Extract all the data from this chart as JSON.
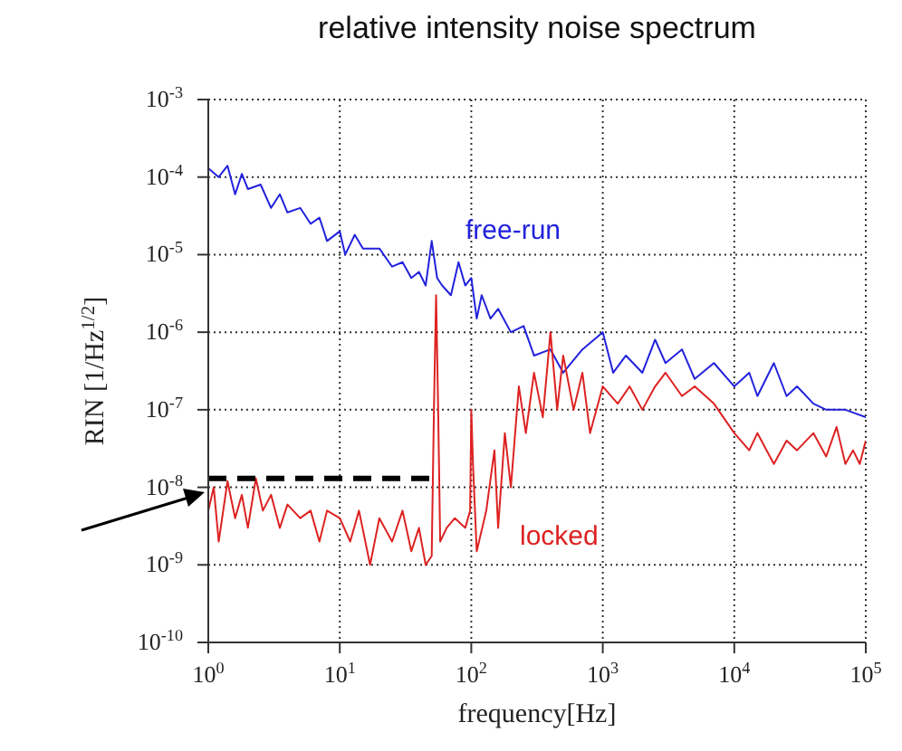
{
  "chart_data": {
    "type": "line",
    "title": "relative intensity noise spectrum",
    "xlabel": "frequency[Hz]",
    "ylabel": "RIN [1/Hz$^{1/2}$]",
    "log": "xy",
    "grid": true,
    "legend": false,
    "marker": "none",
    "xlim": [
      1,
      100000
    ],
    "xticks": [
      {
        "value": 1,
        "label": "10$^{0}$"
      },
      {
        "value": 10,
        "label": "10$^{1}$"
      },
      {
        "value": 100,
        "label": "10$^{2}$"
      },
      {
        "value": 1000,
        "label": "10$^{3}$"
      },
      {
        "value": 10000,
        "label": "10$^{4}$"
      },
      {
        "value": 100000,
        "label": "10$^{5}$"
      }
    ],
    "ylim": [
      1e-10,
      0.001
    ],
    "yticks": [
      {
        "value": 1e-10,
        "label": "10$^{-10}$"
      },
      {
        "value": 1e-09,
        "label": "10$^{-9}$"
      },
      {
        "value": 1e-08,
        "label": "10$^{-8}$"
      },
      {
        "value": 1e-07,
        "label": "10$^{-7}$"
      },
      {
        "value": 1e-06,
        "label": "10$^{-6}$"
      },
      {
        "value": 1e-05,
        "label": "10$^{-5}$"
      },
      {
        "value": 0.0001,
        "label": "10$^{-4}$"
      },
      {
        "value": 0.001,
        "label": "10$^{-3}$"
      }
    ],
    "series": [
      {
        "name": "free-run",
        "color": "#2222dd",
        "line_style": "solid",
        "x": [
          1,
          1.2,
          1.4,
          1.6,
          1.8,
          2,
          2.5,
          3,
          3.5,
          4,
          5,
          6,
          7,
          8,
          10,
          11,
          13,
          15,
          20,
          25,
          30,
          35,
          40,
          45,
          50,
          55,
          60,
          70,
          80,
          90,
          100,
          110,
          120,
          140,
          160,
          200,
          250,
          300,
          400,
          500,
          700,
          1000,
          1200,
          1500,
          2000,
          2500,
          3000,
          4000,
          5000,
          7000,
          10000,
          13000,
          15000,
          20000,
          25000,
          30000,
          40000,
          50000,
          70000,
          100000
        ],
        "values": [
          0.00013,
          0.0001,
          0.00014,
          6e-05,
          0.00011,
          7e-05,
          8e-05,
          4e-05,
          6e-05,
          3.5e-05,
          4e-05,
          2.5e-05,
          3e-05,
          1.5e-05,
          2e-05,
          1e-05,
          1.8e-05,
          1.2e-05,
          1.2e-05,
          7e-06,
          8e-06,
          5e-06,
          6e-06,
          4e-06,
          1.5e-05,
          5e-06,
          4e-06,
          3e-06,
          8e-06,
          4e-06,
          5e-06,
          1.5e-06,
          3e-06,
          1.5e-06,
          2e-06,
          1e-06,
          1.2e-06,
          5e-07,
          6e-07,
          3e-07,
          6e-07,
          1e-06,
          3e-07,
          5e-07,
          3e-07,
          8e-07,
          4e-07,
          6e-07,
          2.5e-07,
          4e-07,
          2e-07,
          3e-07,
          1.5e-07,
          4e-07,
          1.5e-07,
          2e-07,
          1.2e-07,
          1e-07,
          1e-07,
          8e-08
        ]
      },
      {
        "name": "locked",
        "color": "#dd2222",
        "line_style": "solid",
        "x": [
          1,
          1.1,
          1.2,
          1.4,
          1.6,
          1.8,
          2,
          2.3,
          2.6,
          3,
          3.5,
          4,
          5,
          6,
          7,
          8,
          10,
          12,
          14,
          17,
          20,
          25,
          30,
          35,
          40,
          45,
          50,
          52,
          54,
          56,
          58,
          65,
          75,
          90,
          98,
          100,
          103,
          110,
          130,
          150,
          160,
          180,
          200,
          230,
          260,
          300,
          350,
          400,
          450,
          500,
          600,
          700,
          800,
          1000,
          1300,
          1600,
          2000,
          2500,
          3000,
          4000,
          5000,
          7000,
          10000,
          13000,
          15000,
          20000,
          25000,
          30000,
          40000,
          50000,
          60000,
          70000,
          80000,
          90000,
          100000
        ],
        "values": [
          5e-09,
          1e-08,
          2e-09,
          1.2e-08,
          4e-09,
          8e-09,
          3e-09,
          1.3e-08,
          5e-09,
          8e-09,
          3e-09,
          6e-09,
          4e-09,
          5e-09,
          2e-09,
          5e-09,
          4e-09,
          2e-09,
          5e-09,
          1e-09,
          4e-09,
          2e-09,
          5e-09,
          1.5e-09,
          3e-09,
          1e-09,
          1.3e-09,
          1e-07,
          3e-06,
          1e-07,
          2e-09,
          3e-09,
          4e-09,
          3e-09,
          5e-09,
          1e-07,
          2e-08,
          1.5e-09,
          5e-09,
          3e-08,
          3e-09,
          5e-08,
          1e-08,
          2e-07,
          5e-08,
          3e-07,
          8e-08,
          1e-06,
          1e-07,
          5e-07,
          1e-07,
          3e-07,
          5e-08,
          2e-07,
          1.2e-07,
          2e-07,
          1e-07,
          2e-07,
          3e-07,
          1.5e-07,
          2e-07,
          1.2e-07,
          5e-08,
          3e-08,
          5e-08,
          2e-08,
          4e-08,
          3e-08,
          5e-08,
          2.5e-08,
          6e-08,
          2e-08,
          3e-08,
          2e-08,
          4e-08
        ]
      },
      {
        "color": "#000000",
        "line_style": "dashed",
        "x": [
          1,
          50
        ],
        "values": [
          1.3e-08,
          1.3e-08
        ]
      }
    ]
  }
}
